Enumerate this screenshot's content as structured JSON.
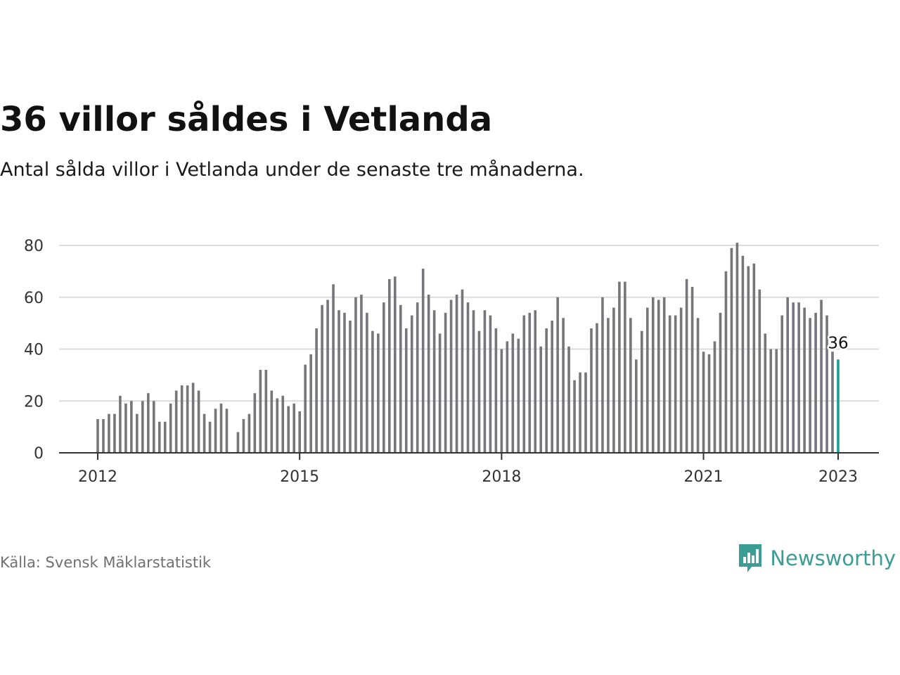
{
  "title": "36 villor såldes i Vetlanda",
  "subtitle": "Antal sålda villor i Vetlanda under de senaste tre månaderna.",
  "source": "Källa: Svensk Mäklarstatistik",
  "brand": "Newsworthy",
  "colors": {
    "bar": "#76757a",
    "highlight": "#1a9e96",
    "grid": "#dddddd",
    "brand": "#3c9d95"
  },
  "chart_data": {
    "type": "bar",
    "x_start": "2012-01",
    "x_end": "2023-01",
    "x_ticks": [
      "2012",
      "2015",
      "2018",
      "2021",
      "2023"
    ],
    "y_ticks": [
      "0",
      "20",
      "40",
      "60",
      "80"
    ],
    "ylim": [
      0,
      82
    ],
    "grid": true,
    "values": [
      13,
      13,
      15,
      15,
      22,
      19,
      20,
      15,
      20,
      23,
      20,
      12,
      12,
      19,
      24,
      26,
      26,
      27,
      24,
      15,
      12,
      17,
      19,
      17,
      0,
      8,
      13,
      15,
      23,
      32,
      32,
      24,
      21,
      22,
      18,
      19,
      16,
      34,
      38,
      48,
      57,
      59,
      65,
      55,
      54,
      51,
      60,
      61,
      54,
      47,
      46,
      58,
      67,
      68,
      57,
      48,
      53,
      58,
      71,
      61,
      55,
      46,
      54,
      59,
      61,
      63,
      58,
      55,
      47,
      55,
      53,
      48,
      40,
      43,
      46,
      44,
      53,
      54,
      55,
      41,
      48,
      51,
      60,
      52,
      41,
      28,
      31,
      31,
      48,
      50,
      60,
      52,
      56,
      66,
      66,
      52,
      36,
      47,
      56,
      60,
      59,
      60,
      53,
      53,
      56,
      67,
      64,
      52,
      39,
      38,
      43,
      54,
      70,
      79,
      81,
      76,
      72,
      73,
      63,
      46,
      40,
      40,
      53,
      60,
      58,
      58,
      56,
      52,
      54,
      59,
      53,
      39,
      36
    ],
    "annotation": {
      "label": "36",
      "value": 36,
      "date": "2023-01"
    }
  }
}
